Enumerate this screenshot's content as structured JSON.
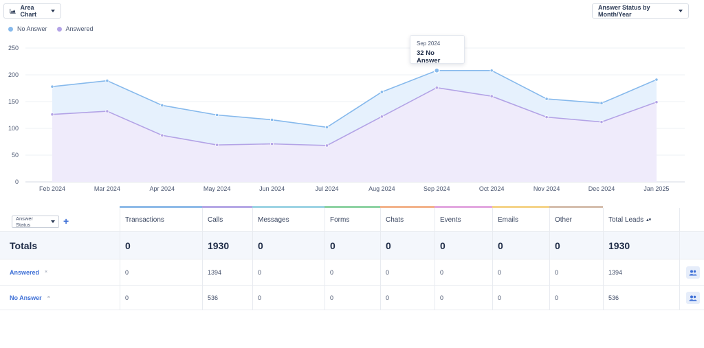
{
  "toolbar": {
    "chart_type_label": "Area Chart",
    "status_view_label": "Answer Status by Month/Year"
  },
  "colors": {
    "no_answer_line": "#86b9ec",
    "no_answer_fill": "#e6f1fd",
    "answered_line": "#b3a3e6",
    "answered_fill": "#efeafb",
    "accent": "#3d6fd6"
  },
  "tooltip": {
    "date": "Sep 2024",
    "value": "32 No Answer"
  },
  "chart_data": {
    "type": "area",
    "x": [
      "Feb 2024",
      "Mar 2024",
      "Apr 2024",
      "May 2024",
      "Jun 2024",
      "Jul 2024",
      "Aug 2024",
      "Sep 2024",
      "Oct 2024",
      "Nov 2024",
      "Dec 2024",
      "Jan 2025"
    ],
    "series": [
      {
        "name": "No Answer",
        "values": [
          178,
          189,
          143,
          125,
          116,
          102,
          168,
          208,
          208,
          155,
          147,
          191
        ]
      },
      {
        "name": "Answered",
        "values": [
          126,
          132,
          87,
          69,
          71,
          68,
          122,
          176,
          160,
          121,
          112,
          149
        ]
      }
    ],
    "stacked": false,
    "ylim": [
      0,
      250
    ],
    "yticks": [
      "0",
      "50",
      "100",
      "150",
      "200",
      "250"
    ],
    "grid": true,
    "legend": "top-left",
    "highlight_index": 7
  },
  "table": {
    "status_select_label": "Answer Status",
    "add_label": "+",
    "columns": [
      "Transactions",
      "Calls",
      "Messages",
      "Forms",
      "Chats",
      "Events",
      "Emails",
      "Other",
      "Total Leads"
    ],
    "column_colors": [
      "#8fbbe8",
      "#b6a8e6",
      "#9ed4e4",
      "#8fd3a4",
      "#f3b48c",
      "#e3a8e0",
      "#f5d48a",
      "#d6bfae"
    ],
    "totals": {
      "label": "Totals",
      "values": [
        "0",
        "1930",
        "0",
        "0",
        "0",
        "0",
        "0",
        "0",
        "1930"
      ]
    },
    "rows": [
      {
        "label": "Answered",
        "remove": "×",
        "values": [
          "0",
          "1394",
          "0",
          "0",
          "0",
          "0",
          "0",
          "0",
          "1394"
        ]
      },
      {
        "label": "No Answer",
        "remove": "×",
        "values": [
          "0",
          "536",
          "0",
          "0",
          "0",
          "0",
          "0",
          "0",
          "536"
        ]
      }
    ]
  }
}
